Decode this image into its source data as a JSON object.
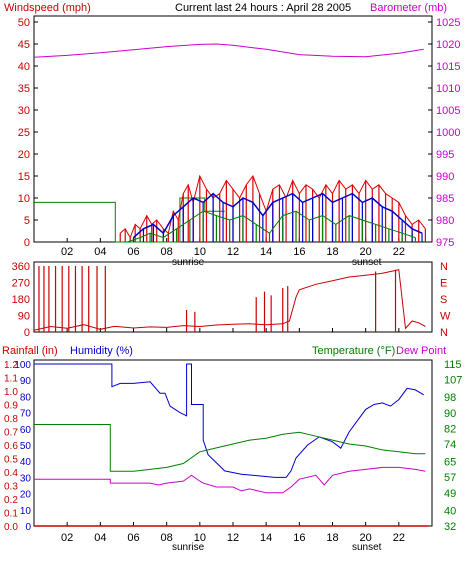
{
  "header": {
    "left_label": "Windspeed (mph)",
    "center_label": "Current last 24 hours : April 28 2005",
    "right_label": "Barometer (mb)"
  },
  "x_hours": [
    "02",
    "04",
    "06",
    "08",
    "10",
    "12",
    "14",
    "16",
    "18",
    "20",
    "22"
  ],
  "panel_labels": {
    "sunrise": "sunrise",
    "sunset": "sunset"
  },
  "colors": {
    "wind_speed": "#dd0000",
    "wind_gust": "#0000cc",
    "wind_avg": "#008000",
    "barometer": "#cc00cc",
    "direction": "#cc0000",
    "rain": "#cc0000",
    "humidity": "#0000cc",
    "temperature": "#008000",
    "dew_point": "#cc00cc",
    "frame": "#000000",
    "grid_label_left_bottom": "#0000cc",
    "grid_label_right_bottom": "#008000"
  },
  "chart_data": [
    {
      "type": "line",
      "panel": "wind",
      "title": "",
      "xlabel": "",
      "ylabel": "Windspeed (mph)",
      "y2label": "Barometer (mb)",
      "x_ticks": [
        "02",
        "04",
        "06",
        "08",
        "10",
        "12",
        "14",
        "16",
        "18",
        "20",
        "22"
      ],
      "y_ticks": [
        0,
        5,
        10,
        15,
        20,
        25,
        30,
        35,
        40,
        45,
        50
      ],
      "y2_ticks": [
        975,
        980,
        985,
        990,
        995,
        1000,
        1005,
        1010,
        1015,
        1020,
        1025
      ],
      "ylim": [
        0,
        50
      ],
      "y2lim": [
        975,
        1025
      ],
      "series": [
        {
          "key": "barometer",
          "axis": "right",
          "x": [
            0,
            2,
            4,
            6,
            8,
            10,
            11,
            12,
            14,
            16,
            18,
            20,
            22,
            23.5
          ],
          "values": [
            1017.0,
            1017.4,
            1018.0,
            1018.7,
            1019.4,
            1019.9,
            1020.0,
            1019.7,
            1018.8,
            1017.6,
            1017.2,
            1017.1,
            1017.9,
            1018.8
          ]
        },
        {
          "key": "wind_avg_step",
          "axis": "left",
          "x": [
            0,
            4.9,
            4.9,
            8.8,
            8.8,
            10.3,
            10.3,
            11.5
          ],
          "values": [
            9,
            9,
            0,
            0,
            10,
            10,
            7,
            7
          ]
        },
        {
          "key": "wind_speed",
          "axis": "left",
          "x": [
            5.2,
            5.5,
            5.8,
            6.1,
            6.4,
            6.8,
            7.1,
            7.4,
            7.8,
            8.1,
            8.4,
            8.7,
            9.0,
            9.3,
            9.6,
            10.0,
            10.4,
            10.8,
            11.2,
            11.6,
            12.0,
            12.4,
            12.8,
            13.2,
            13.6,
            14.0,
            14.4,
            14.8,
            15.2,
            15.6,
            16.0,
            16.4,
            16.8,
            17.2,
            17.6,
            18.0,
            18.4,
            18.8,
            19.2,
            19.6,
            20.0,
            20.4,
            20.8,
            21.2,
            21.6,
            22.0,
            22.4,
            22.8,
            23.2,
            23.6
          ],
          "values": [
            2,
            3,
            1,
            4,
            3,
            6,
            4,
            5,
            3,
            2,
            7,
            5,
            11,
            13,
            9,
            15,
            12,
            10,
            11,
            14,
            12,
            10,
            13,
            15,
            11,
            7,
            12,
            13,
            10,
            14,
            11,
            13,
            12,
            10,
            13,
            11,
            14,
            12,
            13,
            11,
            14,
            12,
            13,
            11,
            10,
            9,
            6,
            4,
            5,
            3
          ]
        },
        {
          "key": "wind_gust",
          "axis": "left",
          "x": [
            6.0,
            6.6,
            7.2,
            7.8,
            8.4,
            9.0,
            9.6,
            10.2,
            10.8,
            11.4,
            12.0,
            12.6,
            13.2,
            13.8,
            14.4,
            15.0,
            15.6,
            16.2,
            16.8,
            17.4,
            18.0,
            18.6,
            19.2,
            19.8,
            20.4,
            21.0,
            21.6,
            22.2,
            22.8,
            23.4
          ],
          "values": [
            1,
            3,
            4,
            2,
            6,
            8,
            10,
            9,
            11,
            9,
            8,
            10,
            9,
            6,
            9,
            10,
            11,
            9,
            10,
            11,
            9,
            10,
            11,
            9,
            10,
            8,
            7,
            5,
            3,
            2
          ]
        },
        {
          "key": "wind_green",
          "axis": "left",
          "x": [
            5.6,
            6.4,
            7.0,
            7.8,
            8.6,
            9.4,
            10.2,
            11.0,
            11.8,
            12.6,
            13.4,
            14.2,
            15.0,
            15.8,
            16.6,
            17.4,
            18.2,
            19.0,
            19.8,
            20.6,
            21.4,
            22.2,
            23.0
          ],
          "values": [
            0,
            1,
            2,
            1,
            3,
            5,
            7,
            6,
            5,
            6,
            4,
            2,
            6,
            7,
            5,
            6,
            4,
            6,
            5,
            4,
            3,
            2,
            1
          ]
        }
      ]
    },
    {
      "type": "line",
      "panel": "direction",
      "title": "",
      "y_ticks": [
        0,
        90,
        180,
        270,
        360
      ],
      "y2_ticks": [
        "N",
        "W",
        "S",
        "E",
        "N"
      ],
      "ylim": [
        0,
        360
      ],
      "series": [
        {
          "key": "direction",
          "x": [
            0,
            1,
            2,
            3,
            4,
            4.8,
            5,
            6,
            7,
            8,
            9,
            10,
            11,
            12,
            13,
            14,
            15,
            15.4,
            15.8,
            16,
            17,
            18,
            19,
            20,
            21,
            22,
            22.4,
            22.8,
            23.2,
            23.6
          ],
          "values": [
            10,
            30,
            20,
            40,
            15,
            30,
            30,
            22,
            28,
            25,
            35,
            30,
            38,
            42,
            45,
            40,
            45,
            60,
            190,
            230,
            260,
            280,
            300,
            310,
            320,
            340,
            20,
            60,
            50,
            30
          ]
        },
        {
          "key": "direction_spikes",
          "x": [
            0.3,
            0.6,
            0.9,
            1.3,
            1.7,
            2.1,
            2.5,
            2.9,
            3.3,
            3.8,
            4.3,
            9.2,
            9.7,
            13.4,
            13.9,
            14.3,
            15.0,
            15.3,
            20.6,
            21.8
          ],
          "values": [
            360,
            360,
            360,
            360,
            360,
            360,
            360,
            360,
            360,
            360,
            360,
            120,
            110,
            190,
            220,
            200,
            240,
            250,
            330,
            340
          ]
        }
      ]
    },
    {
      "type": "line",
      "panel": "rain_humidity_temp",
      "title": "",
      "ylabel_left_1": "Rainfall (in)",
      "ylabel_left_2": "Humidity (%)",
      "ylabel_right_1": "Temperature (°F)",
      "ylabel_right_2": "Dew Point",
      "humidity_ticks": [
        0,
        10,
        20,
        30,
        40,
        50,
        60,
        70,
        80,
        90,
        100
      ],
      "rain_ticks": [
        "0.0",
        "0.1",
        "0.2",
        "0.3",
        "0.4",
        "0.5",
        "0.6",
        "0.7",
        "0.8",
        "0.9",
        "1.0",
        "1.1",
        "1.2"
      ],
      "temp_ticks": [
        32,
        40,
        49,
        57,
        65,
        74,
        82,
        90,
        98,
        107,
        115
      ],
      "ylim_humidity": [
        0,
        100
      ],
      "ylim_temp": [
        32,
        115
      ],
      "series": [
        {
          "key": "humidity",
          "axis": "humidity",
          "x": [
            0,
            4.7,
            4.7,
            5.2,
            6,
            7,
            7.6,
            7.9,
            8.2,
            8.8,
            9.2,
            9.2,
            9.5,
            9.5,
            10.2,
            10.2,
            10.5,
            11.5,
            12.5,
            13.5,
            14.5,
            15.2,
            15.5,
            15.8,
            16.5,
            17.2,
            18,
            18.5,
            19,
            19.5,
            20.0,
            20.5,
            21,
            21.5,
            22,
            22.5,
            23,
            23.5
          ],
          "values": [
            100,
            100,
            86,
            88,
            88,
            89,
            82,
            82,
            74,
            70,
            68,
            100,
            100,
            75,
            75,
            53,
            44,
            34,
            32,
            31,
            30,
            30,
            34,
            42,
            50,
            55,
            52,
            48,
            58,
            65,
            72,
            75,
            76,
            74,
            78,
            85,
            84,
            81
          ]
        },
        {
          "key": "temperature",
          "axis": "temp",
          "x": [
            0,
            4.6,
            4.6,
            6,
            7,
            8,
            9,
            10,
            11,
            12,
            13,
            14,
            15,
            16,
            17,
            18,
            19,
            20,
            21,
            22,
            23,
            23.6
          ],
          "values": [
            84,
            84,
            60,
            60,
            61,
            62,
            64,
            70,
            72,
            74,
            76,
            77,
            79,
            80,
            78,
            76,
            74,
            73,
            71,
            70,
            69,
            69
          ]
        },
        {
          "key": "dew_point",
          "axis": "temp",
          "x": [
            0,
            4.6,
            4.6,
            6,
            7,
            7.5,
            8,
            9,
            9.5,
            10,
            10.2,
            11,
            12,
            12.5,
            13,
            14,
            15,
            15.5,
            16,
            17,
            17.5,
            18,
            19,
            20,
            21,
            22,
            23,
            23.6
          ],
          "values": [
            56,
            56,
            54,
            54,
            54,
            53,
            54,
            55,
            58,
            55,
            54,
            52,
            52,
            50,
            51,
            49,
            49,
            52,
            56,
            58,
            53,
            58,
            60,
            61,
            62,
            62,
            61,
            60
          ]
        },
        {
          "key": "rainfall",
          "axis": "humidity",
          "x": [
            0,
            23.8
          ],
          "values": [
            0,
            0
          ]
        }
      ]
    }
  ]
}
